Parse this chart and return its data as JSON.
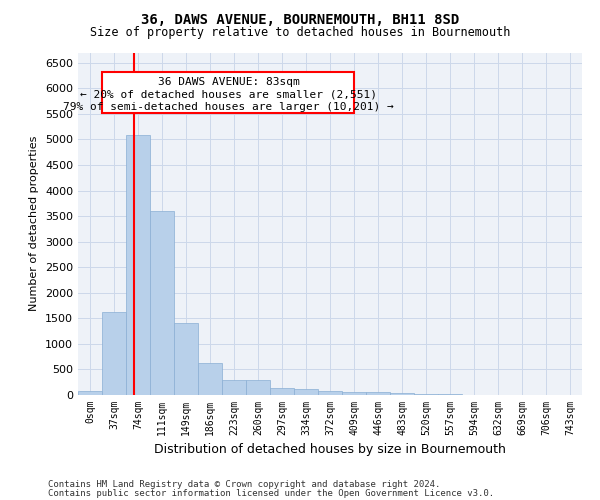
{
  "title": "36, DAWS AVENUE, BOURNEMOUTH, BH11 8SD",
  "subtitle": "Size of property relative to detached houses in Bournemouth",
  "xlabel": "Distribution of detached houses by size in Bournemouth",
  "ylabel": "Number of detached properties",
  "footer_line1": "Contains HM Land Registry data © Crown copyright and database right 2024.",
  "footer_line2": "Contains public sector information licensed under the Open Government Licence v3.0.",
  "bar_labels": [
    "0sqm",
    "37sqm",
    "74sqm",
    "111sqm",
    "149sqm",
    "186sqm",
    "223sqm",
    "260sqm",
    "297sqm",
    "334sqm",
    "372sqm",
    "409sqm",
    "446sqm",
    "483sqm",
    "520sqm",
    "557sqm",
    "594sqm",
    "632sqm",
    "669sqm",
    "706sqm",
    "743sqm"
  ],
  "bar_values": [
    75,
    1630,
    5080,
    3600,
    1400,
    620,
    290,
    285,
    145,
    110,
    75,
    60,
    55,
    40,
    15,
    10,
    5,
    3,
    2,
    1,
    1
  ],
  "bar_color": "#b8d0ea",
  "bar_edge_color": "#8aafd4",
  "ylim": [
    0,
    6700
  ],
  "yticks": [
    0,
    500,
    1000,
    1500,
    2000,
    2500,
    3000,
    3500,
    4000,
    4500,
    5000,
    5500,
    6000,
    6500
  ],
  "red_line_x": 1.85,
  "ann_line1": "36 DAWS AVENUE: 83sqm",
  "ann_line2": "← 20% of detached houses are smaller (2,551)",
  "ann_line3": "79% of semi-detached houses are larger (10,201) →",
  "grid_color": "#ccd8ea",
  "bg_color": "#eef2f8"
}
